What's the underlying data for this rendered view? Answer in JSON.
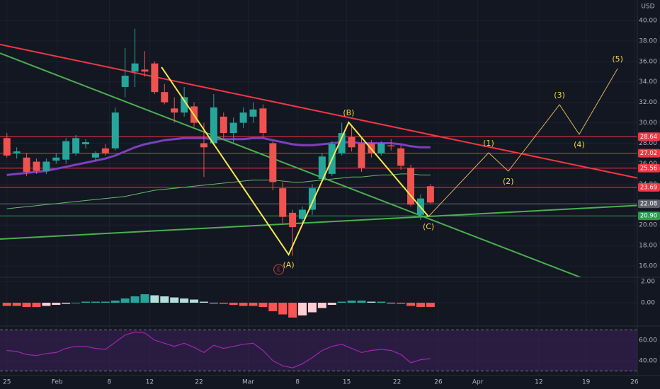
{
  "chart_data": [
    {
      "type": "candlestick",
      "currency": "USD",
      "xlim": [
        -0.7,
        64
      ],
      "xticks": [
        {
          "value": 0,
          "label": "25"
        },
        {
          "value": 5.1,
          "label": "Feb"
        },
        {
          "value": 10.4,
          "label": "8"
        },
        {
          "value": 14.5,
          "label": "12"
        },
        {
          "value": 19.5,
          "label": "22"
        },
        {
          "value": 24.5,
          "label": "Mar"
        },
        {
          "value": 29.5,
          "label": "8"
        },
        {
          "value": 34.5,
          "label": "15"
        },
        {
          "value": 39.6,
          "label": "22"
        },
        {
          "value": 43.8,
          "label": "26"
        },
        {
          "value": 47.8,
          "label": "Apr"
        },
        {
          "value": 54,
          "label": "12"
        },
        {
          "value": 58.8,
          "label": "19"
        },
        {
          "value": 63.7,
          "label": "26"
        }
      ],
      "ylim": [
        14.9,
        42.0
      ],
      "yticks": [
        {
          "value": 40,
          "label": "40.00"
        },
        {
          "value": 38,
          "label": "38.00"
        },
        {
          "value": 36,
          "label": "36.00"
        },
        {
          "value": 34,
          "label": "34.00"
        },
        {
          "value": 32,
          "label": "32.00"
        },
        {
          "value": 30,
          "label": "30.00"
        },
        {
          "value": 28,
          "label": "28.00"
        },
        {
          "value": 26,
          "label": "26.00"
        },
        {
          "value": 24,
          "label": "24.00"
        },
        {
          "value": 22,
          "label": "22.00"
        },
        {
          "value": 20,
          "label": "20.00"
        },
        {
          "value": 18,
          "label": "18.00"
        },
        {
          "value": 16,
          "label": "16.00"
        }
      ],
      "up_color": "#26a69a",
      "down_color": "#ef5350",
      "open": [
        28.5,
        27.0,
        26.6,
        26.2,
        25.3,
        26.3,
        26.4,
        27.0,
        27.9,
        26.6,
        27.5,
        27.5,
        33.5,
        35.0,
        35.2,
        35.8,
        33.0,
        31.4,
        31.0,
        31.6,
        28.0,
        28.0,
        30.6,
        29.0,
        30.0,
        30.6,
        31.4,
        28.0,
        23.6,
        21.2,
        20.6,
        21.5,
        24.5,
        25.0,
        27.0,
        28.6,
        28.0,
        28.0,
        27.0,
        27.8,
        27.5,
        25.6,
        21.0,
        23.8
      ],
      "high": [
        29,
        27.6,
        27,
        26.5,
        26.5,
        27,
        28.5,
        28.8,
        28.4,
        27.2,
        27.9,
        31.5,
        37.3,
        39.2,
        37,
        36,
        33.8,
        32.5,
        33.5,
        32,
        30,
        32.8,
        31,
        30.5,
        31.5,
        32,
        31.8,
        28.2,
        24.2,
        21.5,
        21.8,
        24,
        27,
        28.2,
        30,
        29.8,
        28.5,
        28.3,
        28.2,
        28.4,
        27.8,
        25.9,
        23,
        24
      ],
      "low": [
        26.6,
        26.5,
        24.8,
        25,
        25,
        26,
        26,
        26.8,
        27.5,
        26.3,
        26.8,
        27.3,
        32.5,
        33.5,
        34.5,
        32.8,
        31.8,
        30,
        30.6,
        29.6,
        24.7,
        27.8,
        28.5,
        28,
        29.5,
        30,
        28.6,
        23.4,
        20.2,
        17.0,
        20,
        21,
        24.2,
        24.8,
        26.8,
        27.2,
        25.2,
        26.6,
        26.8,
        27.3,
        25.4,
        21.8,
        20.5,
        22.1
      ],
      "close": [
        26.8,
        27.2,
        25.2,
        25.3,
        26.2,
        26.6,
        28.2,
        28.5,
        28.1,
        27.0,
        27.0,
        31.0,
        34.6,
        35.8,
        35.0,
        33.0,
        32.0,
        31.0,
        32.5,
        30.0,
        27.6,
        31.5,
        29.0,
        30.0,
        31.0,
        31.3,
        29.0,
        24.2,
        20.8,
        19.8,
        21.5,
        23.6,
        26.7,
        27.9,
        29.0,
        27.6,
        25.6,
        27.0,
        28.0,
        27.7,
        25.8,
        22.0,
        22.6,
        22.2
      ],
      "series": [
        {
          "color": "#7e3fbf",
          "width": 3,
          "values": [
            24.9,
            25.0,
            25.1,
            25.2,
            25.3,
            25.5,
            25.7,
            25.9,
            26.1,
            26.3,
            26.5,
            26.8,
            27.2,
            27.6,
            27.9,
            28.1,
            28.3,
            28.4,
            28.5,
            28.5,
            28.5,
            28.4,
            28.4,
            28.4,
            28.4,
            28.5,
            28.5,
            28.3,
            28.1,
            27.9,
            27.8,
            27.8,
            27.9,
            28.0,
            28.1,
            28.1,
            28.0,
            28.0,
            28.0,
            28.0,
            27.9,
            27.7,
            27.6,
            27.6
          ]
        },
        {
          "color": "#66bb6a",
          "width": 1,
          "values": [
            21.6,
            21.7,
            21.8,
            21.9,
            22.0,
            22.1,
            22.2,
            22.3,
            22.4,
            22.5,
            22.6,
            22.7,
            22.8,
            23.0,
            23.2,
            23.4,
            23.5,
            23.6,
            23.7,
            23.8,
            23.9,
            24.0,
            24.1,
            24.2,
            24.3,
            24.4,
            24.4,
            24.4,
            24.3,
            24.2,
            24.2,
            24.3,
            24.4,
            24.5,
            24.6,
            24.7,
            24.7,
            24.8,
            24.9,
            24.9,
            25.0,
            25.0,
            24.9,
            24.9
          ]
        }
      ],
      "levels": [
        {
          "value": 28.64,
          "color": "#f23645"
        },
        {
          "value": 27.02,
          "color": "#f23645"
        },
        {
          "value": 25.56,
          "color": "#f23645"
        },
        {
          "value": 23.69,
          "color": "#f23645"
        },
        {
          "value": 22.08,
          "color": "#5d606b"
        },
        {
          "value": 20.9,
          "label": "20.90",
          "color": "#2e9a4f"
        }
      ],
      "trendlines": [
        {
          "color": "#f23645",
          "points": [
            [
              -0.7,
              37.65
            ],
            [
              66,
              24.2
            ]
          ]
        },
        {
          "color": "#4caf50",
          "points": [
            [
              -0.7,
              36.8
            ],
            [
              58.4,
              14.83
            ]
          ]
        },
        {
          "color": "#4caf50",
          "points": [
            [
              -0.7,
              18.63
            ],
            [
              66,
              22.02
            ]
          ]
        }
      ],
      "waves": [
        {
          "color": "#f5e94b",
          "width": 2,
          "points": [
            {
              "x": 15.7,
              "y": 35.44
            },
            {
              "x": 28.6,
              "y": 17.11,
              "label": "(A)"
            },
            {
              "x": 34.7,
              "y": 30.04,
              "label": "(B)"
            },
            {
              "x": 42.8,
              "y": 20.84,
              "label": "(C)"
            }
          ]
        },
        {
          "color": "#d9b35a",
          "width": 1,
          "points": [
            {
              "x": 42.8,
              "y": 20.84
            },
            {
              "x": 48.9,
              "y": 27.07,
              "label": "(1)"
            },
            {
              "x": 50.9,
              "y": 25.27,
              "label": "(2)"
            },
            {
              "x": 56.1,
              "y": 31.77,
              "label": "(3)"
            },
            {
              "x": 58.1,
              "y": 28.87,
              "label": "(4)"
            },
            {
              "x": 62.0,
              "y": 35.3,
              "label": "(5)"
            }
          ]
        }
      ],
      "earnings": {
        "label": "E",
        "x": 27.6
      }
    },
    {
      "type": "bar",
      "ylim": [
        -2.13,
        2.4
      ],
      "yticks": [
        {
          "value": 2,
          "label": "2.00"
        },
        {
          "value": 0,
          "label": "0.00"
        }
      ],
      "values": [
        -0.3,
        -0.3,
        -0.4,
        -0.4,
        -0.3,
        -0.2,
        -0.1,
        0,
        0.1,
        0.1,
        0.1,
        0.2,
        0.4,
        0.6,
        0.8,
        0.7,
        0.6,
        0.5,
        0.4,
        0.3,
        0.1,
        0,
        -0.1,
        -0.2,
        -0.3,
        -0.3,
        -0.4,
        -0.8,
        -1.1,
        -1.4,
        -1.2,
        -0.9,
        -0.5,
        -0.2,
        0.1,
        0.2,
        0.2,
        0.1,
        0.1,
        0,
        -0.1,
        -0.3,
        -0.4,
        -0.4
      ]
    },
    {
      "type": "line",
      "ylim": [
        26.2,
        73.1
      ],
      "yticks": [
        {
          "value": 60,
          "label": "60.00"
        },
        {
          "value": 40,
          "label": "40.00"
        }
      ],
      "bands": [
        30,
        70
      ],
      "band_color": "#3a1f55",
      "color": "#9c27b0",
      "values": [
        50,
        49,
        46,
        45,
        47,
        48,
        52,
        54,
        54,
        52,
        51,
        58,
        65,
        68,
        67,
        60,
        57,
        54,
        57,
        53,
        48,
        55,
        52,
        54,
        56,
        57,
        50,
        40,
        35,
        33,
        37,
        43,
        50,
        54,
        56,
        52,
        48,
        50,
        51,
        50,
        46,
        38,
        41,
        42
      ]
    }
  ]
}
